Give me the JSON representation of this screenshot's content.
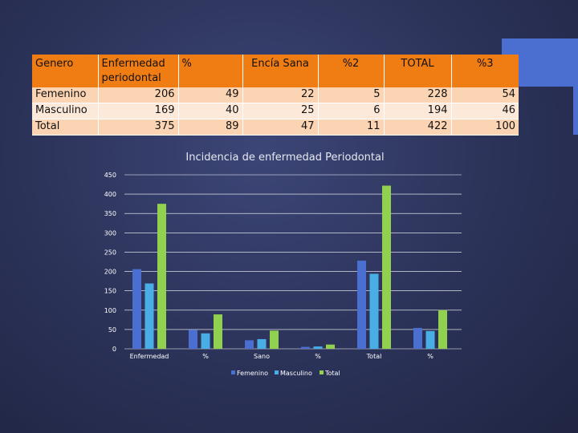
{
  "table": {
    "headers": [
      "Genero",
      "Enfermedad periodontal",
      "%",
      "Encía Sana",
      "%2",
      "TOTAL",
      "%3"
    ],
    "rows": [
      {
        "label": "Femenino",
        "values": [
          "206",
          "49",
          "22",
          "5",
          "228",
          "54"
        ]
      },
      {
        "label": "Masculino",
        "values": [
          "169",
          "40",
          "25",
          "6",
          "194",
          "46"
        ]
      },
      {
        "label": "Total",
        "values": [
          "375",
          "89",
          "47",
          "11",
          "422",
          "100"
        ]
      }
    ]
  },
  "chart_data": {
    "type": "bar",
    "title": "Incidencia de enfermedad Periodontal",
    "categories": [
      "Enfermedad",
      "%",
      "Sano",
      "%",
      "Total",
      "%"
    ],
    "series": [
      {
        "name": "Femenino",
        "values": [
          206,
          49,
          22,
          5,
          228,
          54
        ],
        "color": "#4a6fd0"
      },
      {
        "name": "Masculino",
        "values": [
          169,
          40,
          25,
          6,
          194,
          46
        ],
        "color": "#4aaee6"
      },
      {
        "name": "Total",
        "values": [
          375,
          89,
          47,
          11,
          422,
          100
        ],
        "color": "#92d050"
      }
    ],
    "yticks": [
      0,
      50,
      100,
      150,
      200,
      250,
      300,
      350,
      400,
      450
    ],
    "ylim": [
      0,
      450
    ],
    "grid": true,
    "legend": "bottom"
  },
  "colors": {
    "header_bg": "#f07c14",
    "row_band_a": "#fbd5b3",
    "row_band_b": "#fde9d9",
    "accent": "#4a6fd0"
  }
}
